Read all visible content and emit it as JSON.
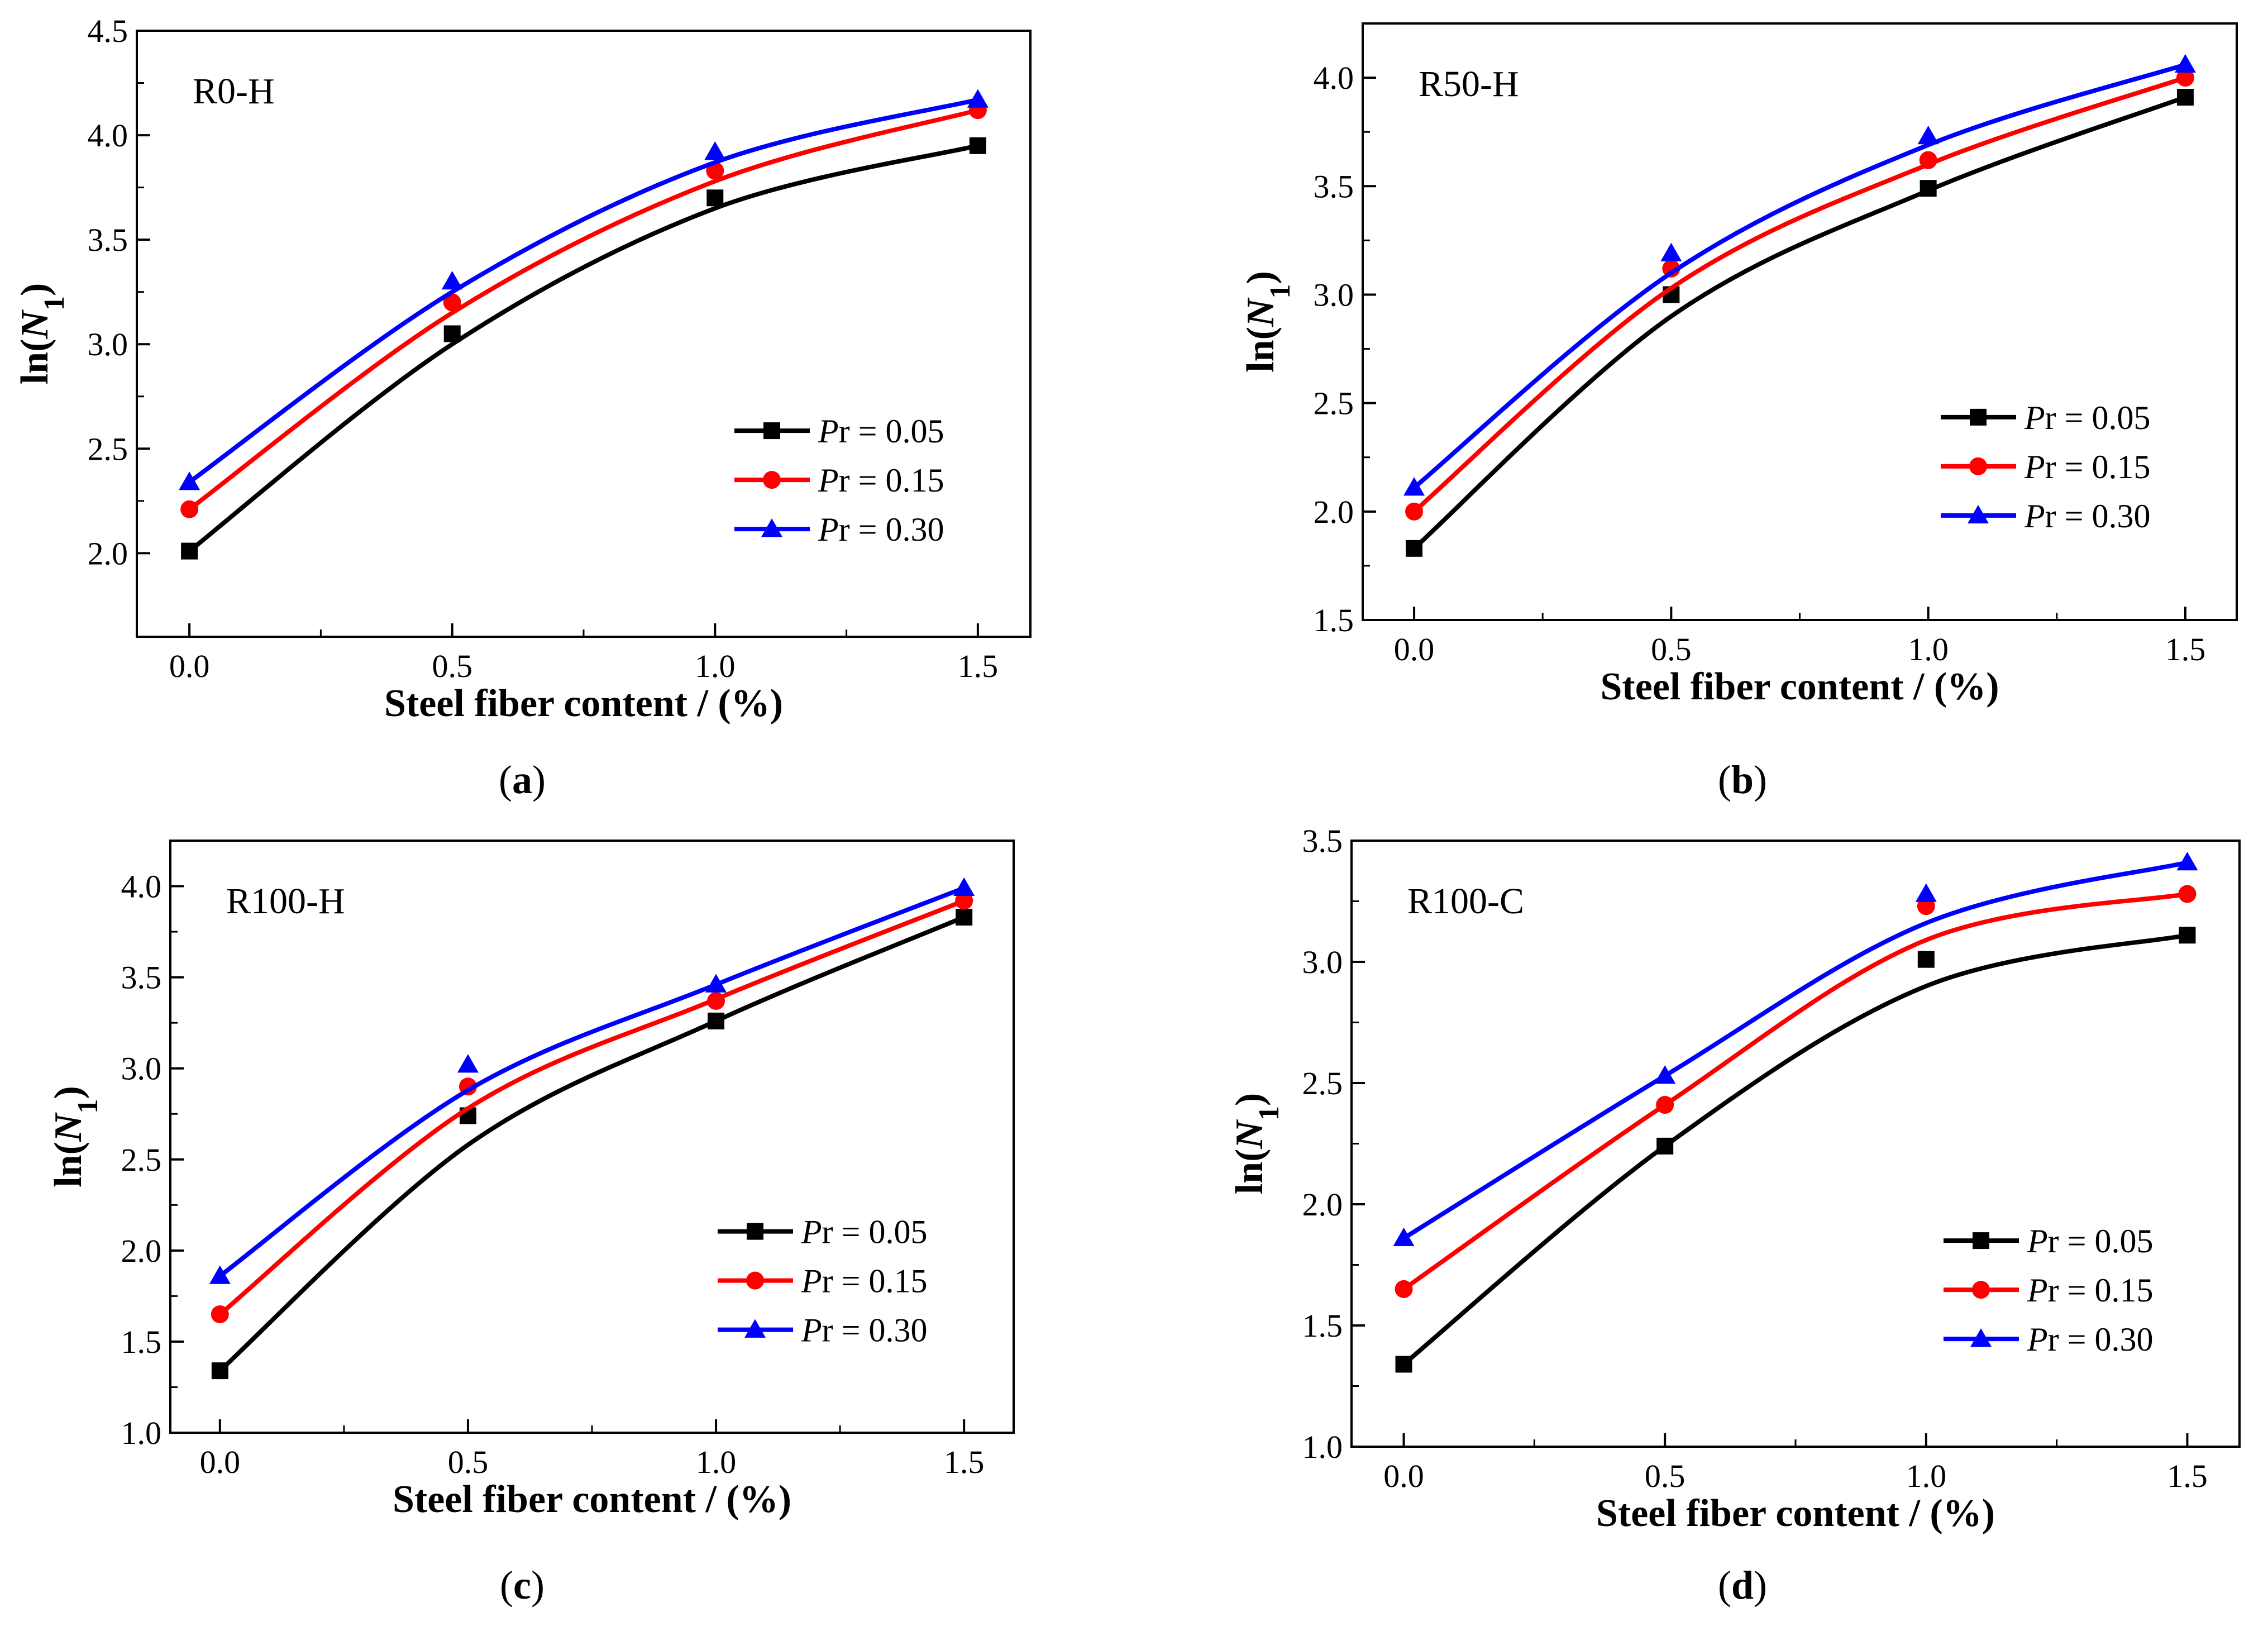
{
  "figure_title": "Four-panel figure: ln(N1) versus steel fiber content",
  "chart_data": [
    {
      "type": "line",
      "panel_id": "a",
      "caption_letter": "a",
      "panel_label": "R0-H",
      "xlabel": "Steel fiber content / (%)",
      "ylabel_main": "ln(N",
      "ylabel_sub": "1",
      "ylabel_close": ")",
      "xlim": [
        -0.1,
        1.6
      ],
      "ylim": [
        1.6,
        4.5
      ],
      "xticks": [
        0.0,
        0.5,
        1.0,
        1.5
      ],
      "xtick_labels": [
        "0.0",
        "0.5",
        "1.0",
        "1.5"
      ],
      "yticks": [
        2.0,
        2.5,
        3.0,
        3.5,
        4.0,
        4.5
      ],
      "ytick_labels": [
        "2.0",
        "2.5",
        "3.0",
        "3.5",
        "4.0",
        "4.5"
      ],
      "x": [
        0.0,
        0.5,
        1.0,
        1.5
      ],
      "legend_position": "center-right",
      "series": [
        {
          "name": "Pr = 0.05",
          "legend_symbol": "P",
          "legend_sub": "r",
          "legend_value": " = 0.05",
          "color": "#000000",
          "marker": "square",
          "values": [
            2.01,
            3.05,
            3.7,
            3.95
          ],
          "fit": [
            2.01,
            3.0,
            3.65,
            3.95
          ]
        },
        {
          "name": "Pr = 0.15",
          "legend_symbol": "P",
          "legend_sub": "r",
          "legend_value": " = 0.15",
          "color": "#ff0000",
          "marker": "circle",
          "values": [
            2.21,
            3.2,
            3.83,
            4.12
          ],
          "fit": [
            2.21,
            3.15,
            3.78,
            4.12
          ]
        },
        {
          "name": "Pr = 0.30",
          "legend_symbol": "P",
          "legend_sub": "r",
          "legend_value": " = 0.30",
          "color": "#0000ff",
          "marker": "triangle",
          "values": [
            2.34,
            3.3,
            3.92,
            4.17
          ],
          "fit": [
            2.34,
            3.25,
            3.87,
            4.17
          ]
        }
      ]
    },
    {
      "type": "line",
      "panel_id": "b",
      "caption_letter": "b",
      "panel_label": "R50-H",
      "xlabel": "Steel fiber content / (%)",
      "ylabel_main": "ln(N",
      "ylabel_sub": "1",
      "ylabel_close": ")",
      "xlim": [
        -0.1,
        1.6
      ],
      "ylim": [
        1.5,
        4.25
      ],
      "xticks": [
        0.0,
        0.5,
        1.0,
        1.5
      ],
      "xtick_labels": [
        "0.0",
        "0.5",
        "1.0",
        "1.5"
      ],
      "yticks": [
        1.5,
        2.0,
        2.5,
        3.0,
        3.5,
        4.0
      ],
      "ytick_labels": [
        "1.5",
        "2.0",
        "2.5",
        "3.0",
        "3.5",
        "4.0"
      ],
      "x": [
        0.0,
        0.5,
        1.0,
        1.5
      ],
      "legend_position": "center-right",
      "series": [
        {
          "name": "Pr = 0.05",
          "legend_symbol": "P",
          "legend_sub": "r",
          "legend_value": " = 0.05",
          "color": "#000000",
          "marker": "square",
          "values": [
            1.83,
            3.0,
            3.49,
            3.91
          ],
          "fit": [
            1.83,
            2.9,
            3.48,
            3.91
          ]
        },
        {
          "name": "Pr = 0.15",
          "legend_symbol": "P",
          "legend_sub": "r",
          "legend_value": " = 0.15",
          "color": "#ff0000",
          "marker": "circle",
          "values": [
            2.0,
            3.12,
            3.62,
            4.0
          ],
          "fit": [
            2.0,
            3.03,
            3.6,
            4.0
          ]
        },
        {
          "name": "Pr = 0.30",
          "legend_symbol": "P",
          "legend_sub": "r",
          "legend_value": " = 0.30",
          "color": "#0000ff",
          "marker": "triangle",
          "values": [
            2.11,
            3.19,
            3.73,
            4.06
          ],
          "fit": [
            2.11,
            3.1,
            3.69,
            4.06
          ]
        }
      ]
    },
    {
      "type": "line",
      "panel_id": "c",
      "caption_letter": "c",
      "panel_label": "R100-H",
      "xlabel": "Steel fiber content / (%)",
      "ylabel_main": "ln(N",
      "ylabel_sub": "1",
      "ylabel_close": ")",
      "xlim": [
        -0.1,
        1.6
      ],
      "ylim": [
        1.0,
        4.25
      ],
      "xticks": [
        0.0,
        0.5,
        1.0,
        1.5
      ],
      "xtick_labels": [
        "0.0",
        "0.5",
        "1.0",
        "1.5"
      ],
      "yticks": [
        1.0,
        1.5,
        2.0,
        2.5,
        3.0,
        3.5,
        4.0
      ],
      "ytick_labels": [
        "1.0",
        "1.5",
        "2.0",
        "2.5",
        "3.0",
        "3.5",
        "4.0"
      ],
      "x": [
        0.0,
        0.5,
        1.0,
        1.5
      ],
      "legend_position": "center-right",
      "series": [
        {
          "name": "Pr = 0.05",
          "legend_symbol": "P",
          "legend_sub": "r",
          "legend_value": " = 0.05",
          "color": "#000000",
          "marker": "square",
          "values": [
            1.34,
            2.74,
            3.26,
            3.83
          ],
          "fit": [
            1.34,
            2.58,
            3.26,
            3.83
          ]
        },
        {
          "name": "Pr = 0.15",
          "legend_symbol": "P",
          "legend_sub": "r",
          "legend_value": " = 0.15",
          "color": "#ff0000",
          "marker": "circle",
          "values": [
            1.65,
            2.9,
            3.37,
            3.92
          ],
          "fit": [
            1.65,
            2.78,
            3.38,
            3.92
          ]
        },
        {
          "name": "Pr = 0.30",
          "legend_symbol": "P",
          "legend_sub": "r",
          "legend_value": " = 0.30",
          "color": "#0000ff",
          "marker": "triangle",
          "values": [
            1.86,
            3.02,
            3.46,
            3.99
          ],
          "fit": [
            1.86,
            2.88,
            3.46,
            3.99
          ]
        }
      ]
    },
    {
      "type": "line",
      "panel_id": "d",
      "caption_letter": "d",
      "panel_label": "R100-C",
      "xlabel": "Steel fiber content / (%)",
      "ylabel_main": "ln(N",
      "ylabel_sub": "1",
      "ylabel_close": ")",
      "xlim": [
        -0.1,
        1.6
      ],
      "ylim": [
        1.0,
        3.5
      ],
      "xticks": [
        0.0,
        0.5,
        1.0,
        1.5
      ],
      "xtick_labels": [
        "0.0",
        "0.5",
        "1.0",
        "1.5"
      ],
      "yticks": [
        1.0,
        1.5,
        2.0,
        2.5,
        3.0,
        3.5
      ],
      "ytick_labels": [
        "1.0",
        "1.5",
        "2.0",
        "2.5",
        "3.0",
        "3.5"
      ],
      "x": [
        0.0,
        0.5,
        1.0,
        1.5
      ],
      "legend_position": "center-right",
      "series": [
        {
          "name": "Pr = 0.05",
          "legend_symbol": "P",
          "legend_sub": "r",
          "legend_value": " = 0.05",
          "color": "#000000",
          "marker": "square",
          "values": [
            1.34,
            2.24,
            3.01,
            3.11
          ],
          "fit": [
            1.34,
            2.24,
            2.9,
            3.11
          ]
        },
        {
          "name": "Pr = 0.15",
          "legend_symbol": "P",
          "legend_sub": "r",
          "legend_value": " = 0.15",
          "color": "#ff0000",
          "marker": "circle",
          "values": [
            1.65,
            2.41,
            3.23,
            3.28
          ],
          "fit": [
            1.65,
            2.41,
            3.09,
            3.28
          ]
        },
        {
          "name": "Pr = 0.30",
          "legend_symbol": "P",
          "legend_sub": "r",
          "legend_value": " = 0.30",
          "color": "#0000ff",
          "marker": "triangle",
          "values": [
            1.86,
            2.53,
            3.28,
            3.41
          ],
          "fit": [
            1.86,
            2.53,
            3.16,
            3.41
          ]
        }
      ]
    }
  ]
}
